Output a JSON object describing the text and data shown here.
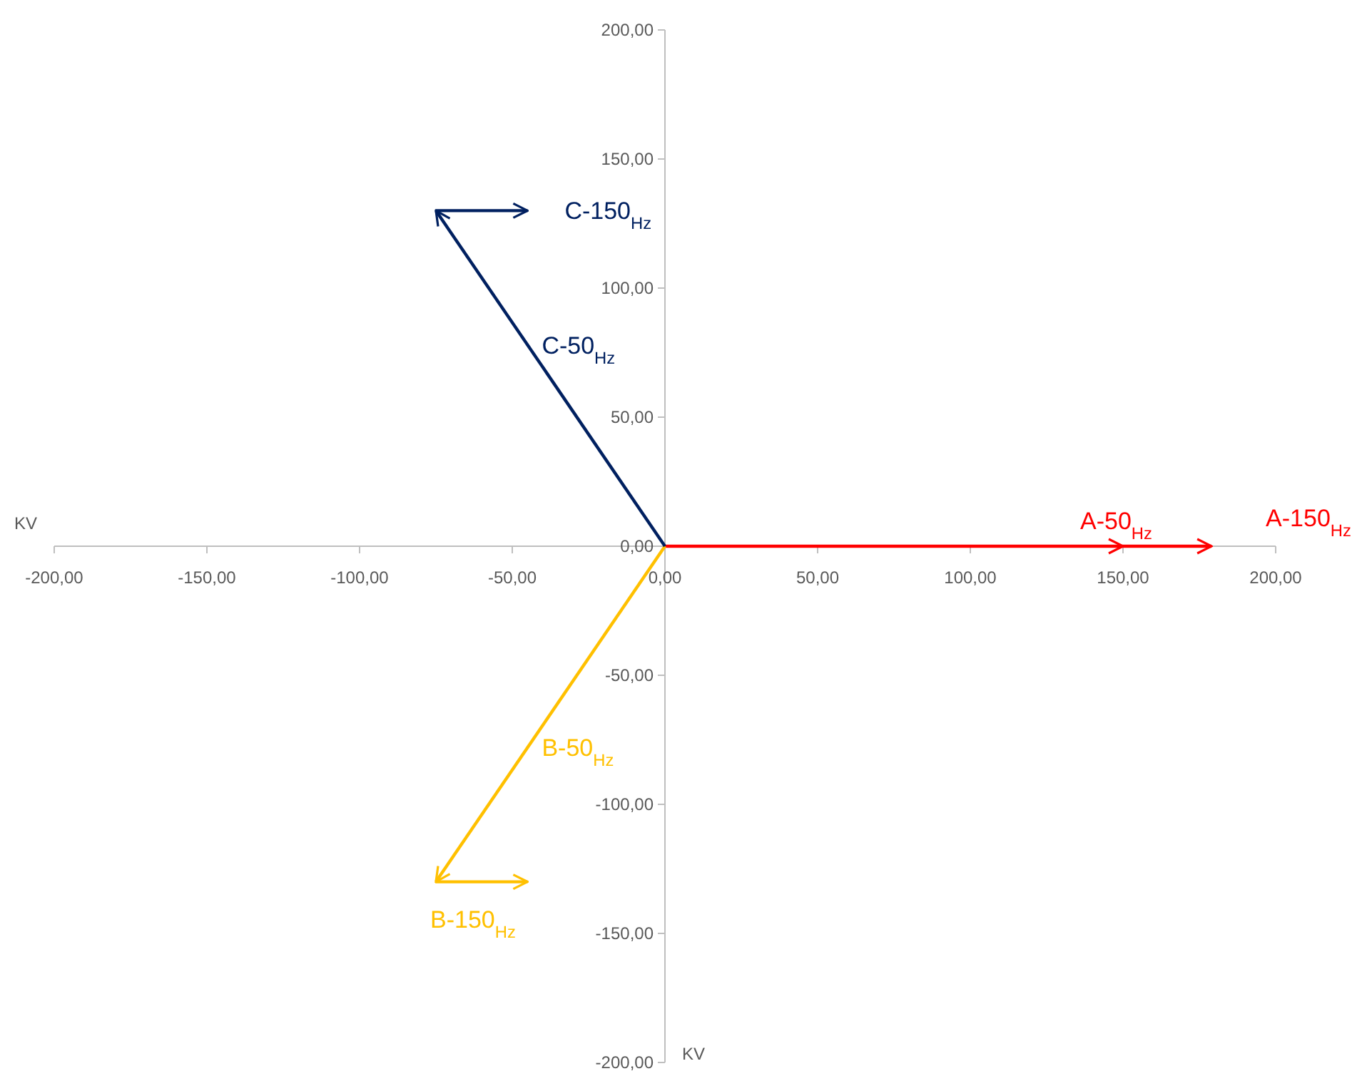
{
  "chart_data": {
    "type": "line",
    "xlabel": "KV",
    "ylabel": "KV",
    "grid": false,
    "marker": "none",
    "line_style": "solid",
    "xlim": [
      -200,
      200
    ],
    "ylim": [
      -200,
      200
    ],
    "xticks": [
      {
        "value": -200,
        "label": "-200,00"
      },
      {
        "value": -150,
        "label": "-150,00"
      },
      {
        "value": -100,
        "label": "-100,00"
      },
      {
        "value": -50,
        "label": "-50,00"
      },
      {
        "value": 0,
        "label": "0,00"
      },
      {
        "value": 50,
        "label": "50,00"
      },
      {
        "value": 100,
        "label": "100,00"
      },
      {
        "value": 150,
        "label": "150,00"
      },
      {
        "value": 200,
        "label": "200,00"
      }
    ],
    "yticks": [
      {
        "value": -200,
        "label": "-200,00"
      },
      {
        "value": -150,
        "label": "-150,00"
      },
      {
        "value": -100,
        "label": "-100,00"
      },
      {
        "value": -50,
        "label": "-50,00"
      },
      {
        "value": 0,
        "label": "0,00"
      },
      {
        "value": 50,
        "label": "50,00"
      },
      {
        "value": 100,
        "label": "100,00"
      },
      {
        "value": 150,
        "label": "150,00"
      },
      {
        "value": 200,
        "label": "200,00"
      }
    ],
    "series": [
      {
        "name": "A-50$_{Hz}$",
        "color": "#ff0000",
        "x": [
          0,
          150
        ],
        "values": [
          0,
          0
        ]
      },
      {
        "name": "A-150$_{Hz}$",
        "color": "#ff0000",
        "x": [
          150,
          179
        ],
        "values": [
          0,
          0
        ]
      },
      {
        "name": "B-50$_{Hz}$",
        "color": "#ffc000",
        "x": [
          0,
          -75
        ],
        "values": [
          0,
          -130
        ]
      },
      {
        "name": "B-150$_{Hz}$",
        "color": "#ffc000",
        "x": [
          -75,
          -45
        ],
        "values": [
          -130,
          -130
        ]
      },
      {
        "name": "C-50$_{Hz}$",
        "color": "#002060",
        "x": [
          0,
          -75
        ],
        "values": [
          0,
          130
        ]
      },
      {
        "name": "C-150$_{Hz}$",
        "color": "#002060",
        "x": [
          -75,
          -45
        ],
        "values": [
          130,
          130
        ]
      }
    ]
  }
}
